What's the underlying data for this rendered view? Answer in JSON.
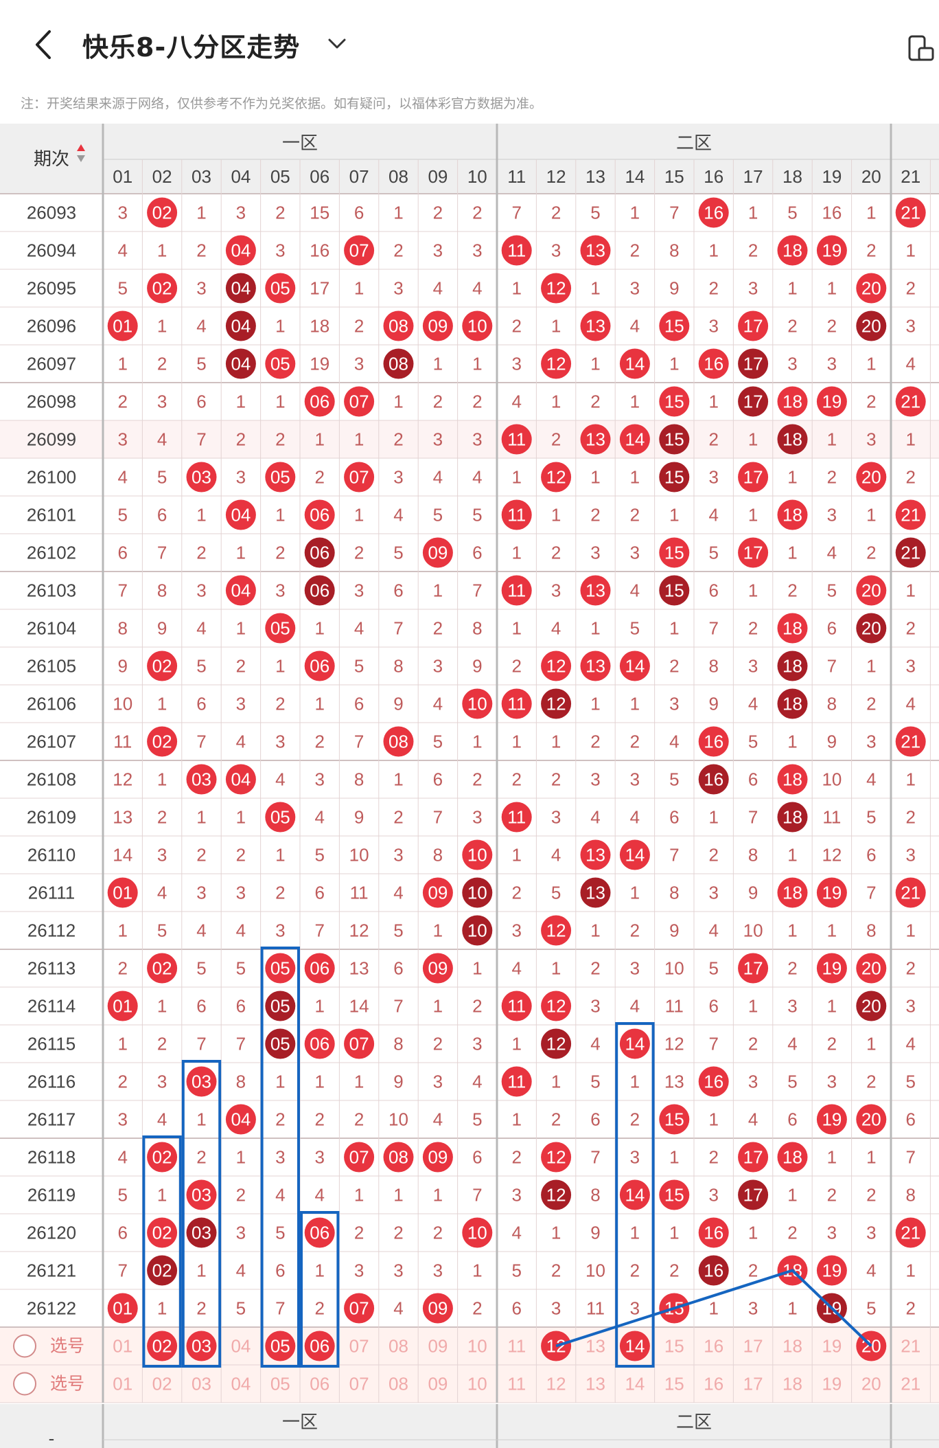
{
  "header": {
    "title": "快乐8-八分区走势",
    "back_icon": "back-arrow-icon",
    "dropdown_icon": "chevron-down-icon",
    "layout_icon": "layout-switch-icon"
  },
  "notice": "注：开奖结果来源于网络，仅供参考不作为兑奖依据。如有疑问，以福体彩官方数据为准。",
  "table": {
    "period_header": "期次",
    "zones": [
      "一区",
      "二区"
    ],
    "col_labels": [
      "01",
      "02",
      "03",
      "04",
      "05",
      "06",
      "07",
      "08",
      "09",
      "10",
      "11",
      "12",
      "13",
      "14",
      "15",
      "16",
      "17",
      "18",
      "19",
      "20",
      "21"
    ],
    "rows": [
      {
        "period": "26093",
        "cells": [
          "3",
          "02",
          "1",
          "3",
          "2",
          "15",
          "6",
          "1",
          "2",
          "2",
          "7",
          "2",
          "5",
          "1",
          "7",
          "16",
          "1",
          "5",
          "16",
          "1",
          "21"
        ]
      },
      {
        "period": "26094",
        "cells": [
          "4",
          "1",
          "2",
          "04",
          "3",
          "16",
          "07",
          "2",
          "3",
          "3",
          "11",
          "3",
          "13",
          "2",
          "8",
          "1",
          "2",
          "18",
          "19",
          "2",
          "1"
        ]
      },
      {
        "period": "26095",
        "cells": [
          "5",
          "02",
          "3",
          "04",
          "05",
          "17",
          "1",
          "3",
          "4",
          "4",
          "1",
          "12",
          "1",
          "3",
          "9",
          "2",
          "3",
          "1",
          "1",
          "20",
          "2"
        ]
      },
      {
        "period": "26096",
        "cells": [
          "01",
          "1",
          "4",
          "04",
          "1",
          "18",
          "2",
          "08",
          "09",
          "10",
          "2",
          "1",
          "13",
          "4",
          "15",
          "3",
          "17",
          "2",
          "2",
          "20",
          "3"
        ]
      },
      {
        "period": "26097",
        "cells": [
          "1",
          "2",
          "5",
          "04",
          "05",
          "19",
          "3",
          "08",
          "1",
          "1",
          "3",
          "12",
          "1",
          "14",
          "1",
          "16",
          "17",
          "3",
          "3",
          "1",
          "4"
        ]
      },
      {
        "period": "26098",
        "cells": [
          "2",
          "3",
          "6",
          "1",
          "1",
          "06",
          "07",
          "1",
          "2",
          "2",
          "4",
          "1",
          "2",
          "1",
          "15",
          "1",
          "17",
          "18",
          "19",
          "2",
          "21"
        ]
      },
      {
        "period": "26099",
        "cells": [
          "3",
          "4",
          "7",
          "2",
          "2",
          "1",
          "1",
          "2",
          "3",
          "3",
          "11",
          "2",
          "13",
          "14",
          "15",
          "2",
          "1",
          "18",
          "1",
          "3",
          "1"
        ]
      },
      {
        "period": "26100",
        "cells": [
          "4",
          "5",
          "03",
          "3",
          "05",
          "2",
          "07",
          "3",
          "4",
          "4",
          "1",
          "12",
          "1",
          "1",
          "15",
          "3",
          "17",
          "1",
          "2",
          "20",
          "2"
        ]
      },
      {
        "period": "26101",
        "cells": [
          "5",
          "6",
          "1",
          "04",
          "1",
          "06",
          "1",
          "4",
          "5",
          "5",
          "11",
          "1",
          "2",
          "2",
          "1",
          "4",
          "1",
          "18",
          "3",
          "1",
          "21"
        ]
      },
      {
        "period": "26102",
        "cells": [
          "6",
          "7",
          "2",
          "1",
          "2",
          "06",
          "2",
          "5",
          "09",
          "6",
          "1",
          "2",
          "3",
          "3",
          "15",
          "5",
          "17",
          "1",
          "4",
          "2",
          "21"
        ]
      },
      {
        "period": "26103",
        "cells": [
          "7",
          "8",
          "3",
          "04",
          "3",
          "06",
          "3",
          "6",
          "1",
          "7",
          "11",
          "3",
          "13",
          "4",
          "15",
          "6",
          "1",
          "2",
          "5",
          "20",
          "1"
        ]
      },
      {
        "period": "26104",
        "cells": [
          "8",
          "9",
          "4",
          "1",
          "05",
          "1",
          "4",
          "7",
          "2",
          "8",
          "1",
          "4",
          "1",
          "5",
          "1",
          "7",
          "2",
          "18",
          "6",
          "20",
          "2"
        ]
      },
      {
        "period": "26105",
        "cells": [
          "9",
          "02",
          "5",
          "2",
          "1",
          "06",
          "5",
          "8",
          "3",
          "9",
          "2",
          "12",
          "13",
          "14",
          "2",
          "8",
          "3",
          "18",
          "7",
          "1",
          "3"
        ]
      },
      {
        "period": "26106",
        "cells": [
          "10",
          "1",
          "6",
          "3",
          "2",
          "1",
          "6",
          "9",
          "4",
          "10",
          "11",
          "12",
          "1",
          "1",
          "3",
          "9",
          "4",
          "18",
          "8",
          "2",
          "4"
        ]
      },
      {
        "period": "26107",
        "cells": [
          "11",
          "02",
          "7",
          "4",
          "3",
          "2",
          "7",
          "08",
          "5",
          "1",
          "1",
          "1",
          "2",
          "2",
          "4",
          "16",
          "5",
          "1",
          "9",
          "3",
          "21"
        ]
      },
      {
        "period": "26108",
        "cells": [
          "12",
          "1",
          "03",
          "04",
          "4",
          "3",
          "8",
          "1",
          "6",
          "2",
          "2",
          "2",
          "3",
          "3",
          "5",
          "16",
          "6",
          "18",
          "10",
          "4",
          "1"
        ]
      },
      {
        "period": "26109",
        "cells": [
          "13",
          "2",
          "1",
          "1",
          "05",
          "4",
          "9",
          "2",
          "7",
          "3",
          "11",
          "3",
          "4",
          "4",
          "6",
          "1",
          "7",
          "18",
          "11",
          "5",
          "2"
        ]
      },
      {
        "period": "26110",
        "cells": [
          "14",
          "3",
          "2",
          "2",
          "1",
          "5",
          "10",
          "3",
          "8",
          "10",
          "1",
          "4",
          "13",
          "14",
          "7",
          "2",
          "8",
          "1",
          "12",
          "6",
          "3"
        ]
      },
      {
        "period": "26111",
        "cells": [
          "01",
          "4",
          "3",
          "3",
          "2",
          "6",
          "11",
          "4",
          "09",
          "10",
          "2",
          "5",
          "13",
          "1",
          "8",
          "3",
          "9",
          "18",
          "19",
          "7",
          "21"
        ]
      },
      {
        "period": "26112",
        "cells": [
          "1",
          "5",
          "4",
          "4",
          "3",
          "7",
          "12",
          "5",
          "1",
          "10",
          "3",
          "12",
          "1",
          "2",
          "9",
          "4",
          "10",
          "1",
          "1",
          "8",
          "1"
        ]
      },
      {
        "period": "26113",
        "cells": [
          "2",
          "02",
          "5",
          "5",
          "05",
          "06",
          "13",
          "6",
          "09",
          "1",
          "4",
          "1",
          "2",
          "3",
          "10",
          "5",
          "17",
          "2",
          "19",
          "20",
          "2"
        ]
      },
      {
        "period": "26114",
        "cells": [
          "01",
          "1",
          "6",
          "6",
          "05",
          "1",
          "14",
          "7",
          "1",
          "2",
          "11",
          "12",
          "3",
          "4",
          "11",
          "6",
          "1",
          "3",
          "1",
          "20",
          "3"
        ]
      },
      {
        "period": "26115",
        "cells": [
          "1",
          "2",
          "7",
          "7",
          "05",
          "06",
          "07",
          "8",
          "2",
          "3",
          "1",
          "12",
          "4",
          "14",
          "12",
          "7",
          "2",
          "4",
          "2",
          "1",
          "4"
        ]
      },
      {
        "period": "26116",
        "cells": [
          "2",
          "3",
          "03",
          "8",
          "1",
          "1",
          "1",
          "9",
          "3",
          "4",
          "11",
          "1",
          "5",
          "1",
          "13",
          "16",
          "3",
          "5",
          "3",
          "2",
          "5"
        ]
      },
      {
        "period": "26117",
        "cells": [
          "3",
          "4",
          "1",
          "04",
          "2",
          "2",
          "2",
          "10",
          "4",
          "5",
          "1",
          "2",
          "6",
          "2",
          "15",
          "1",
          "4",
          "6",
          "19",
          "20",
          "6"
        ]
      },
      {
        "period": "26118",
        "cells": [
          "4",
          "02",
          "2",
          "1",
          "3",
          "3",
          "07",
          "08",
          "09",
          "6",
          "2",
          "12",
          "7",
          "3",
          "1",
          "2",
          "17",
          "18",
          "1",
          "1",
          "7"
        ]
      },
      {
        "period": "26119",
        "cells": [
          "5",
          "1",
          "03",
          "2",
          "4",
          "4",
          "1",
          "1",
          "1",
          "7",
          "3",
          "12",
          "8",
          "14",
          "15",
          "3",
          "17",
          "1",
          "2",
          "2",
          "8"
        ]
      },
      {
        "period": "26120",
        "cells": [
          "6",
          "02",
          "03",
          "3",
          "5",
          "06",
          "2",
          "2",
          "2",
          "10",
          "4",
          "1",
          "9",
          "1",
          "1",
          "16",
          "1",
          "2",
          "3",
          "3",
          "21"
        ]
      },
      {
        "period": "26121",
        "cells": [
          "7",
          "02",
          "1",
          "4",
          "6",
          "1",
          "3",
          "3",
          "3",
          "1",
          "5",
          "2",
          "10",
          "2",
          "2",
          "16",
          "2",
          "18",
          "19",
          "4",
          "1"
        ]
      },
      {
        "period": "26122",
        "cells": [
          "01",
          "1",
          "2",
          "5",
          "7",
          "2",
          "07",
          "4",
          "09",
          "2",
          "6",
          "3",
          "11",
          "3",
          "15",
          "1",
          "3",
          "1",
          "19",
          "5",
          "2"
        ]
      }
    ],
    "select_rows": [
      {
        "label": "选号",
        "cells": [
          "01",
          "02",
          "03",
          "04",
          "05",
          "06",
          "07",
          "08",
          "09",
          "10",
          "11",
          "12",
          "13",
          "14",
          "15",
          "16",
          "17",
          "18",
          "19",
          "20",
          "21"
        ],
        "selected": [
          "02",
          "03",
          "05",
          "06",
          "12",
          "14",
          "20"
        ]
      },
      {
        "label": "选号",
        "cells": [
          "01",
          "02",
          "03",
          "04",
          "05",
          "06",
          "07",
          "08",
          "09",
          "10",
          "11",
          "12",
          "13",
          "14",
          "15",
          "16",
          "17",
          "18",
          "19",
          "20",
          "21"
        ],
        "selected": []
      }
    ],
    "footer_period": "-"
  },
  "colors": {
    "red": "#e8343f",
    "dark_red": "#a81e26",
    "miss_text": "#bf5b5b",
    "grid_line": "#e3d3d3",
    "header_bg": "#efefef",
    "select_bg": "#fff2ef",
    "blue_box": "#1565c0"
  }
}
